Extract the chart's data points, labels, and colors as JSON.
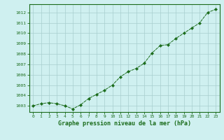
{
  "x": [
    0,
    1,
    2,
    3,
    4,
    5,
    6,
    7,
    8,
    9,
    10,
    11,
    12,
    13,
    14,
    15,
    16,
    17,
    18,
    19,
    20,
    21,
    22,
    23
  ],
  "y": [
    1003.0,
    1003.2,
    1003.3,
    1003.2,
    1003.0,
    1002.7,
    1003.1,
    1003.7,
    1004.1,
    1004.5,
    1005.0,
    1005.8,
    1006.3,
    1006.6,
    1007.1,
    1008.1,
    1008.8,
    1008.9,
    1009.5,
    1010.0,
    1010.5,
    1011.0,
    1012.0,
    1012.3
  ],
  "line_color": "#1a6b1a",
  "marker": "D",
  "marker_size": 2.2,
  "bg_color": "#cff0f0",
  "grid_color": "#a8cece",
  "xlabel": "Graphe pression niveau de la mer (hPa)",
  "xlabel_color": "#1a6b1a",
  "tick_color": "#1a6b1a",
  "ylim_min": 1002.4,
  "ylim_max": 1012.8,
  "yticks": [
    1003,
    1004,
    1005,
    1006,
    1007,
    1008,
    1009,
    1010,
    1011,
    1012
  ],
  "xticks": [
    0,
    1,
    2,
    3,
    4,
    5,
    6,
    7,
    8,
    9,
    10,
    11,
    12,
    13,
    14,
    15,
    16,
    17,
    18,
    19,
    20,
    21,
    22,
    23
  ],
  "spine_color": "#1a6b1a",
  "tick_fontsize": 4.5,
  "xlabel_fontsize": 6.0,
  "linewidth": 0.7
}
